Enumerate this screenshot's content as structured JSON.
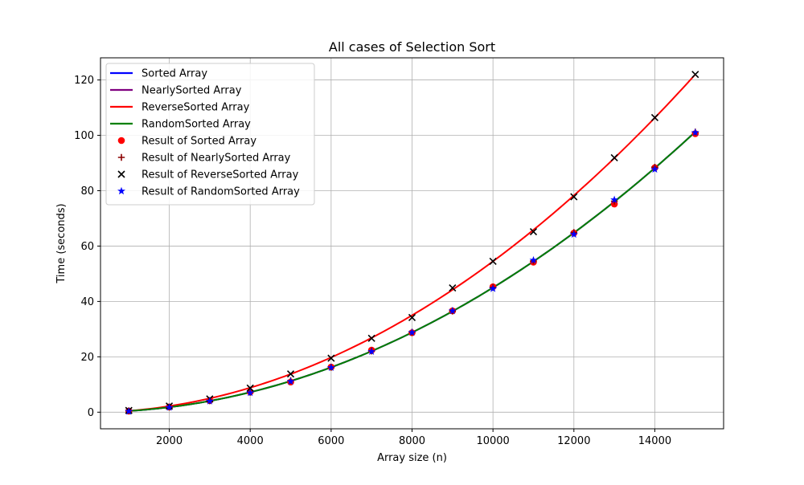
{
  "chart_data": {
    "type": "line",
    "title": "All cases of Selection Sort",
    "xlabel": "Array size (n)",
    "ylabel": "Time (seconds)",
    "xlim": [
      300,
      15700
    ],
    "ylim": [
      -6,
      128
    ],
    "xticks": [
      2000,
      4000,
      6000,
      8000,
      10000,
      12000,
      14000
    ],
    "yticks": [
      0,
      20,
      40,
      60,
      80,
      100,
      120
    ],
    "grid": true,
    "legend_position": "upper-left",
    "x": [
      1000,
      2000,
      3000,
      4000,
      5000,
      6000,
      7000,
      8000,
      9000,
      10000,
      11000,
      12000,
      13000,
      14000,
      15000
    ],
    "series": [
      {
        "name": "Sorted Array",
        "kind": "line",
        "color": "#0000ff",
        "values": [
          0.45,
          1.8,
          4.05,
          7.2,
          11.25,
          16.2,
          22.05,
          28.8,
          36.45,
          45.0,
          54.45,
          64.8,
          76.05,
          88.2,
          101.25
        ]
      },
      {
        "name": "NearlySorted Array",
        "kind": "line",
        "color": "#800080",
        "values": [
          0.45,
          1.8,
          4.05,
          7.2,
          11.25,
          16.2,
          22.05,
          28.8,
          36.45,
          45.0,
          54.45,
          64.8,
          76.05,
          88.2,
          101.25
        ]
      },
      {
        "name": "ReverseSorted Array",
        "kind": "line",
        "color": "#ff0000",
        "values": [
          0.55,
          2.2,
          4.95,
          8.8,
          13.75,
          19.7,
          26.8,
          34.9,
          44.2,
          54.6,
          66.0,
          78.3,
          91.8,
          106.3,
          121.9
        ]
      },
      {
        "name": "RandomSorted Array",
        "kind": "line",
        "color": "#008000",
        "values": [
          0.45,
          1.8,
          4.05,
          7.2,
          11.25,
          16.2,
          22.05,
          28.8,
          36.45,
          45.0,
          54.45,
          64.8,
          76.05,
          88.2,
          101.25
        ]
      },
      {
        "name": "Result of Sorted Array",
        "kind": "scatter",
        "marker": "circle",
        "color": "#ff0000",
        "values": [
          0.4,
          1.9,
          4.2,
          7.3,
          10.9,
          16.3,
          22.4,
          28.7,
          36.6,
          45.3,
          54.2,
          64.7,
          75.2,
          88.3,
          100.6
        ]
      },
      {
        "name": "Result of NearlySorted Array",
        "kind": "scatter",
        "marker": "plus",
        "color": "#8b0000",
        "values": [
          0.5,
          1.8,
          4.1,
          7.2,
          11.4,
          16.2,
          22.1,
          28.9,
          36.5,
          45.1,
          54.6,
          64.9,
          76.2,
          88.5,
          101.2
        ]
      },
      {
        "name": "Result of ReverseSorted Array",
        "kind": "scatter",
        "marker": "x",
        "color": "#000000",
        "values": [
          0.6,
          2.2,
          4.8,
          8.7,
          13.8,
          19.5,
          26.7,
          34.2,
          44.9,
          54.5,
          65.2,
          77.8,
          91.9,
          106.4,
          122.0
        ]
      },
      {
        "name": "Result of RandomSorted Array",
        "kind": "scatter",
        "marker": "star",
        "color": "#0000ff",
        "values": [
          0.3,
          1.7,
          4.0,
          7.0,
          11.1,
          16.1,
          21.9,
          28.8,
          36.6,
          44.6,
          54.9,
          64.2,
          76.7,
          87.7,
          101.0
        ]
      }
    ]
  }
}
